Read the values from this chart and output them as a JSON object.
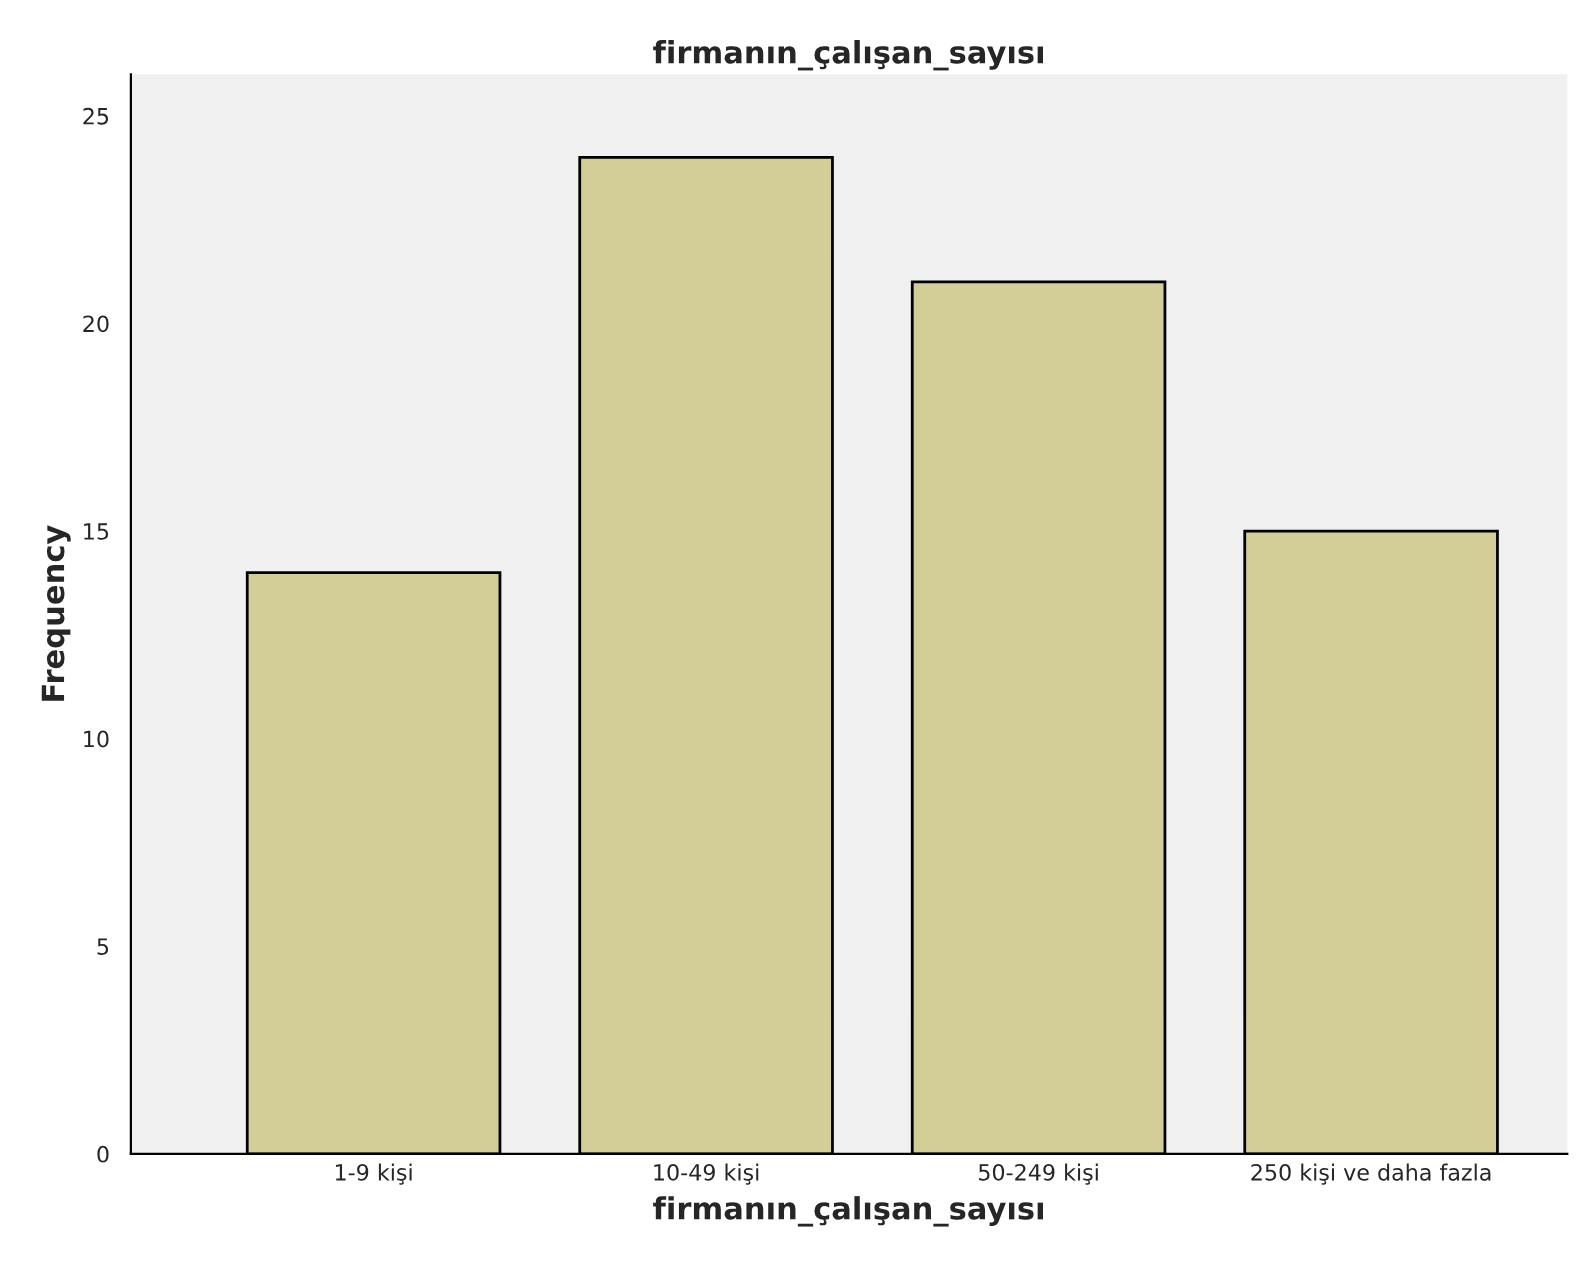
{
  "chart_data": {
    "type": "bar",
    "title": "firmanın_çalışan_sayısı",
    "xlabel": "firmanın_çalışan_sayısı",
    "ylabel": "Frequency",
    "categories": [
      "1-9 kişi",
      "10-49 kişi",
      "50-249 kişi",
      "250 kişi ve daha fazla"
    ],
    "values": [
      14,
      24,
      21,
      15
    ],
    "color": "#d3ce97",
    "ylim": [
      0,
      26
    ],
    "yticks": [
      0,
      5,
      10,
      15,
      20,
      25
    ],
    "grid": false,
    "legend": false
  }
}
